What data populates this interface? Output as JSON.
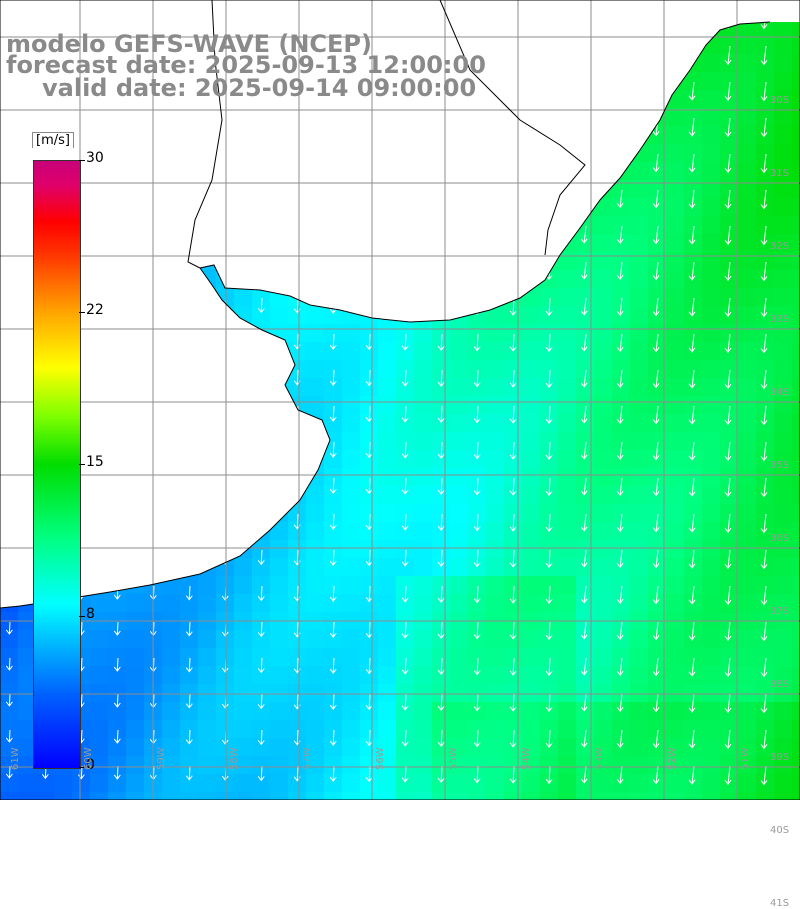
{
  "title": {
    "line1": "modelo GEFS-WAVE (NCEP)",
    "line2": "forecast date: 2025-09-13 12:00:00",
    "line3": "valid date: 2025-09-14 09:00:00"
  },
  "colorbar": {
    "unit": "[m/s]",
    "ticks": [
      "30",
      "22",
      "15",
      "8",
      "0"
    ],
    "min": 0,
    "max": 30
  },
  "map": {
    "field": "wind speed",
    "lat_labels": [
      "30S",
      "31S",
      "32S",
      "33S",
      "34S",
      "35S",
      "36S",
      "37S",
      "38S",
      "39S",
      "40S",
      "41S"
    ],
    "lon_labels": [
      "61W",
      "60W",
      "59W",
      "58W",
      "57W",
      "56W",
      "55W",
      "54W",
      "53W",
      "52W",
      "51W"
    ],
    "colors": {
      "land": "#ffffff",
      "coast": "#000000",
      "grid": "#8c8c8c",
      "arrow": "#ffffff"
    }
  }
}
